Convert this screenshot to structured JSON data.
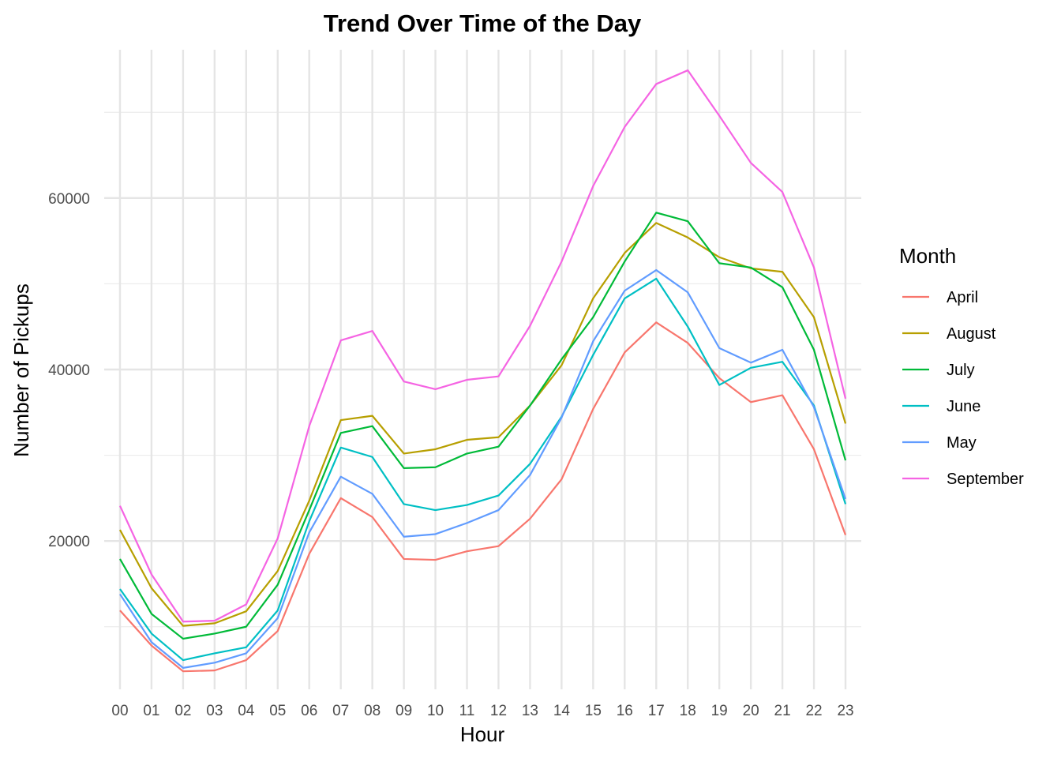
{
  "chart_data": {
    "type": "line",
    "title": "Trend Over Time of the Day",
    "xlabel": "Hour",
    "ylabel": "Number of Pickups",
    "categories": [
      "00",
      "01",
      "02",
      "03",
      "04",
      "05",
      "06",
      "07",
      "08",
      "09",
      "10",
      "11",
      "12",
      "13",
      "14",
      "15",
      "16",
      "17",
      "18",
      "19",
      "20",
      "21",
      "22",
      "23"
    ],
    "ylim": [
      2700,
      77300
    ],
    "y_ticks": [
      20000,
      40000,
      60000
    ],
    "y_tick_labels": [
      "20000",
      "40000",
      "60000"
    ],
    "grid": true,
    "legend": {
      "title": "Month",
      "position": "right"
    },
    "series": [
      {
        "name": "April",
        "color": "#F8766D",
        "values": [
          11900,
          7800,
          4800,
          4900,
          6100,
          9500,
          18500,
          25000,
          22800,
          17900,
          17800,
          18800,
          19400,
          22600,
          27200,
          35400,
          42000,
          45500,
          43100,
          39000,
          36200,
          37000,
          30700,
          20700
        ]
      },
      {
        "name": "August",
        "color": "#B79F00",
        "values": [
          21300,
          14500,
          10100,
          10400,
          11800,
          16500,
          24700,
          34100,
          34600,
          30200,
          30700,
          31800,
          32100,
          35800,
          40500,
          48300,
          53600,
          57100,
          55400,
          53100,
          51800,
          51400,
          46100,
          33700
        ]
      },
      {
        "name": "July",
        "color": "#00BA38",
        "values": [
          17900,
          11500,
          8600,
          9200,
          10000,
          14900,
          23600,
          32600,
          33400,
          28500,
          28600,
          30200,
          31000,
          35800,
          41200,
          46100,
          52600,
          58300,
          57300,
          52400,
          51900,
          49600,
          42300,
          29400
        ]
      },
      {
        "name": "June",
        "color": "#00BFC4",
        "values": [
          14400,
          9200,
          6100,
          6900,
          7600,
          11900,
          22300,
          30900,
          29800,
          24300,
          23600,
          24200,
          25300,
          29000,
          34500,
          41700,
          48300,
          50600,
          45000,
          38200,
          40200,
          40900,
          35800,
          24300
        ]
      },
      {
        "name": "May",
        "color": "#619CFF",
        "values": [
          13800,
          8200,
          5200,
          5800,
          6900,
          11000,
          21000,
          27500,
          25500,
          20500,
          20800,
          22100,
          23600,
          27700,
          34400,
          43300,
          49200,
          51600,
          49000,
          42500,
          40800,
          42300,
          35600,
          24900
        ]
      },
      {
        "name": "September",
        "color": "#F564E3",
        "values": [
          24100,
          16100,
          10600,
          10700,
          12600,
          20300,
          33400,
          43400,
          44500,
          38600,
          37700,
          38800,
          39200,
          45100,
          52600,
          61400,
          68300,
          73300,
          74900,
          69600,
          64100,
          60700,
          51900,
          36600
        ]
      }
    ]
  }
}
